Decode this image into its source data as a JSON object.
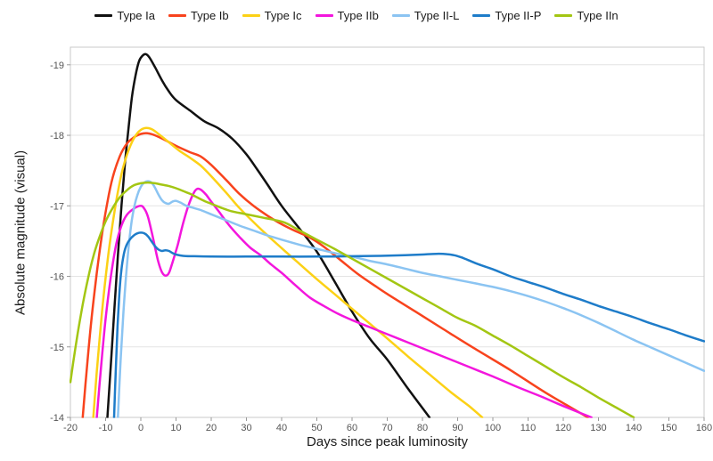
{
  "chart_data": {
    "type": "line",
    "title": "",
    "xlabel": "Days since peak luminosity",
    "ylabel": "Absolute magnitude (visual)",
    "xlim": [
      -20,
      160
    ],
    "ylim": [
      -14,
      -19.25
    ],
    "xticks": [
      -20,
      -10,
      0,
      10,
      20,
      30,
      40,
      50,
      60,
      70,
      80,
      90,
      100,
      110,
      120,
      130,
      140,
      150,
      160
    ],
    "yticks": [
      -19,
      -18,
      -17,
      -16,
      -15,
      -14
    ],
    "grid": "horizontal",
    "legend_position": "top",
    "axis_colors": {
      "border": "#c9c9c9",
      "gridline": "#e4e4e4",
      "tick": "#999999",
      "tick_label": "#555555"
    },
    "series": [
      {
        "name": "Type Ia",
        "color": "#111111",
        "points": [
          [
            -9.5,
            -14
          ],
          [
            -8.5,
            -14.75
          ],
          [
            -7.5,
            -15.55
          ],
          [
            -6.5,
            -16.3
          ],
          [
            -5.5,
            -17.0
          ],
          [
            -4.5,
            -17.6
          ],
          [
            -3.5,
            -18.1
          ],
          [
            -2.5,
            -18.55
          ],
          [
            -1.5,
            -18.85
          ],
          [
            -0.5,
            -19.05
          ],
          [
            0.5,
            -19.13
          ],
          [
            1.5,
            -19.15
          ],
          [
            2.5,
            -19.1
          ],
          [
            4,
            -18.97
          ],
          [
            6,
            -18.78
          ],
          [
            8,
            -18.62
          ],
          [
            10,
            -18.5
          ],
          [
            14,
            -18.35
          ],
          [
            18,
            -18.2
          ],
          [
            22,
            -18.1
          ],
          [
            26,
            -17.95
          ],
          [
            30,
            -17.73
          ],
          [
            33,
            -17.52
          ],
          [
            36,
            -17.3
          ],
          [
            40,
            -17.0
          ],
          [
            45,
            -16.68
          ],
          [
            50,
            -16.35
          ],
          [
            55,
            -15.93
          ],
          [
            60,
            -15.5
          ],
          [
            65,
            -15.12
          ],
          [
            70,
            -14.82
          ],
          [
            76,
            -14.4
          ],
          [
            82,
            -14.0
          ]
        ]
      },
      {
        "name": "Type Ib",
        "color": "#f8431d",
        "points": [
          [
            -16.5,
            -14
          ],
          [
            -15.5,
            -14.6
          ],
          [
            -14,
            -15.4
          ],
          [
            -12.5,
            -16.05
          ],
          [
            -11,
            -16.6
          ],
          [
            -9.5,
            -17.05
          ],
          [
            -8,
            -17.4
          ],
          [
            -6,
            -17.7
          ],
          [
            -4,
            -17.88
          ],
          [
            -2,
            -17.97
          ],
          [
            0,
            -18.02
          ],
          [
            2,
            -18.03
          ],
          [
            4,
            -18.0
          ],
          [
            7,
            -17.93
          ],
          [
            10,
            -17.85
          ],
          [
            14,
            -17.76
          ],
          [
            17,
            -17.7
          ],
          [
            20,
            -17.58
          ],
          [
            24,
            -17.38
          ],
          [
            28,
            -17.17
          ],
          [
            32,
            -17.0
          ],
          [
            36,
            -16.86
          ],
          [
            40,
            -16.74
          ],
          [
            44,
            -16.64
          ],
          [
            48,
            -16.55
          ],
          [
            52,
            -16.42
          ],
          [
            57,
            -16.22
          ],
          [
            62,
            -16.02
          ],
          [
            67,
            -15.85
          ],
          [
            70,
            -15.75
          ],
          [
            78,
            -15.5
          ],
          [
            86,
            -15.25
          ],
          [
            95,
            -14.97
          ],
          [
            105,
            -14.67
          ],
          [
            115,
            -14.35
          ],
          [
            127,
            -14.0
          ]
        ]
      },
      {
        "name": "Type Ic",
        "color": "#fcd116",
        "points": [
          [
            -13.5,
            -14
          ],
          [
            -12.5,
            -14.65
          ],
          [
            -11,
            -15.5
          ],
          [
            -9.5,
            -16.2
          ],
          [
            -8,
            -16.75
          ],
          [
            -6.5,
            -17.2
          ],
          [
            -5,
            -17.55
          ],
          [
            -3,
            -17.85
          ],
          [
            -1,
            -18.03
          ],
          [
            1,
            -18.1
          ],
          [
            3,
            -18.09
          ],
          [
            5,
            -18.02
          ],
          [
            8,
            -17.9
          ],
          [
            11,
            -17.78
          ],
          [
            14,
            -17.68
          ],
          [
            17,
            -17.57
          ],
          [
            20,
            -17.42
          ],
          [
            24,
            -17.2
          ],
          [
            28,
            -16.97
          ],
          [
            32,
            -16.77
          ],
          [
            36,
            -16.58
          ],
          [
            40,
            -16.4
          ],
          [
            45,
            -16.18
          ],
          [
            50,
            -15.96
          ],
          [
            55,
            -15.75
          ],
          [
            60,
            -15.54
          ],
          [
            65,
            -15.33
          ],
          [
            70,
            -15.12
          ],
          [
            76,
            -14.86
          ],
          [
            82,
            -14.61
          ],
          [
            88,
            -14.36
          ],
          [
            93,
            -14.17
          ],
          [
            97,
            -14.0
          ]
        ]
      },
      {
        "name": "Type IIb",
        "color": "#f316dd",
        "points": [
          [
            -12.5,
            -14
          ],
          [
            -11.5,
            -14.6
          ],
          [
            -10,
            -15.4
          ],
          [
            -8.5,
            -16.0
          ],
          [
            -7,
            -16.45
          ],
          [
            -5.5,
            -16.72
          ],
          [
            -4,
            -16.87
          ],
          [
            -2,
            -16.96
          ],
          [
            0,
            -17.0
          ],
          [
            1,
            -16.96
          ],
          [
            2,
            -16.85
          ],
          [
            3,
            -16.65
          ],
          [
            4,
            -16.42
          ],
          [
            5,
            -16.2
          ],
          [
            6,
            -16.06
          ],
          [
            7,
            -16.01
          ],
          [
            8,
            -16.05
          ],
          [
            9,
            -16.2
          ],
          [
            10.5,
            -16.45
          ],
          [
            12,
            -16.75
          ],
          [
            13.5,
            -17.0
          ],
          [
            15,
            -17.18
          ],
          [
            16,
            -17.24
          ],
          [
            17,
            -17.23
          ],
          [
            18.5,
            -17.16
          ],
          [
            20,
            -17.06
          ],
          [
            22,
            -16.93
          ],
          [
            25,
            -16.73
          ],
          [
            28,
            -16.56
          ],
          [
            31,
            -16.41
          ],
          [
            34,
            -16.3
          ],
          [
            37,
            -16.17
          ],
          [
            40,
            -16.05
          ],
          [
            44,
            -15.87
          ],
          [
            48,
            -15.7
          ],
          [
            52,
            -15.58
          ],
          [
            56,
            -15.47
          ],
          [
            60,
            -15.38
          ],
          [
            65,
            -15.28
          ],
          [
            70,
            -15.18
          ],
          [
            76,
            -15.06
          ],
          [
            82,
            -14.94
          ],
          [
            88,
            -14.82
          ],
          [
            94,
            -14.7
          ],
          [
            100,
            -14.58
          ],
          [
            107,
            -14.43
          ],
          [
            114,
            -14.29
          ],
          [
            121,
            -14.14
          ],
          [
            128,
            -14.0
          ]
        ]
      },
      {
        "name": "Type II-L",
        "color": "#8bc4f2",
        "points": [
          [
            -6.5,
            -14
          ],
          [
            -5.8,
            -14.75
          ],
          [
            -5,
            -15.45
          ],
          [
            -4.2,
            -16.0
          ],
          [
            -3.4,
            -16.45
          ],
          [
            -2.6,
            -16.78
          ],
          [
            -1.8,
            -17.0
          ],
          [
            -1,
            -17.15
          ],
          [
            0,
            -17.27
          ],
          [
            1,
            -17.33
          ],
          [
            2,
            -17.35
          ],
          [
            3,
            -17.33
          ],
          [
            4,
            -17.26
          ],
          [
            5,
            -17.16
          ],
          [
            6,
            -17.08
          ],
          [
            7,
            -17.04
          ],
          [
            8,
            -17.03
          ],
          [
            9,
            -17.06
          ],
          [
            10,
            -17.07
          ],
          [
            11.5,
            -17.04
          ],
          [
            13,
            -17.0
          ],
          [
            15,
            -16.97
          ],
          [
            17,
            -16.94
          ],
          [
            20,
            -16.88
          ],
          [
            24,
            -16.8
          ],
          [
            28,
            -16.72
          ],
          [
            32,
            -16.65
          ],
          [
            36,
            -16.58
          ],
          [
            40,
            -16.52
          ],
          [
            45,
            -16.45
          ],
          [
            50,
            -16.39
          ],
          [
            55,
            -16.33
          ],
          [
            60,
            -16.28
          ],
          [
            65,
            -16.22
          ],
          [
            70,
            -16.17
          ],
          [
            75,
            -16.11
          ],
          [
            80,
            -16.05
          ],
          [
            85,
            -16.0
          ],
          [
            90,
            -15.95
          ],
          [
            95,
            -15.9
          ],
          [
            100,
            -15.85
          ],
          [
            105,
            -15.79
          ],
          [
            110,
            -15.72
          ],
          [
            115,
            -15.64
          ],
          [
            120,
            -15.55
          ],
          [
            125,
            -15.45
          ],
          [
            130,
            -15.34
          ],
          [
            135,
            -15.22
          ],
          [
            140,
            -15.1
          ],
          [
            145,
            -14.99
          ],
          [
            150,
            -14.88
          ],
          [
            155,
            -14.77
          ],
          [
            160,
            -14.66
          ]
        ]
      },
      {
        "name": "Type II-P",
        "color": "#1e7cc9",
        "points": [
          [
            -7.6,
            -14
          ],
          [
            -7.1,
            -14.7
          ],
          [
            -6.6,
            -15.3
          ],
          [
            -6.1,
            -15.75
          ],
          [
            -5.5,
            -16.1
          ],
          [
            -4.8,
            -16.32
          ],
          [
            -4,
            -16.45
          ],
          [
            -3,
            -16.53
          ],
          [
            -2,
            -16.58
          ],
          [
            -1,
            -16.61
          ],
          [
            0,
            -16.62
          ],
          [
            1,
            -16.61
          ],
          [
            2,
            -16.57
          ],
          [
            3,
            -16.5
          ],
          [
            4,
            -16.43
          ],
          [
            5,
            -16.38
          ],
          [
            6,
            -16.36
          ],
          [
            7,
            -16.37
          ],
          [
            8,
            -16.36
          ],
          [
            9,
            -16.33
          ],
          [
            10,
            -16.31
          ],
          [
            12,
            -16.29
          ],
          [
            15,
            -16.285
          ],
          [
            20,
            -16.28
          ],
          [
            30,
            -16.28
          ],
          [
            40,
            -16.28
          ],
          [
            50,
            -16.28
          ],
          [
            60,
            -16.285
          ],
          [
            68,
            -16.29
          ],
          [
            75,
            -16.3
          ],
          [
            80,
            -16.31
          ],
          [
            84,
            -16.32
          ],
          [
            87,
            -16.315
          ],
          [
            89,
            -16.3
          ],
          [
            91,
            -16.27
          ],
          [
            93,
            -16.23
          ],
          [
            96,
            -16.17
          ],
          [
            100,
            -16.1
          ],
          [
            105,
            -16.0
          ],
          [
            110,
            -15.92
          ],
          [
            115,
            -15.84
          ],
          [
            120,
            -15.75
          ],
          [
            125,
            -15.67
          ],
          [
            130,
            -15.58
          ],
          [
            135,
            -15.5
          ],
          [
            140,
            -15.42
          ],
          [
            145,
            -15.33
          ],
          [
            150,
            -15.25
          ],
          [
            155,
            -15.16
          ],
          [
            160,
            -15.08
          ]
        ]
      },
      {
        "name": "Type IIn",
        "color": "#a3c613",
        "points": [
          [
            -20,
            -14.5
          ],
          [
            -19,
            -14.85
          ],
          [
            -18,
            -15.17
          ],
          [
            -16.5,
            -15.6
          ],
          [
            -15,
            -15.97
          ],
          [
            -13.5,
            -16.28
          ],
          [
            -12,
            -16.52
          ],
          [
            -10,
            -16.78
          ],
          [
            -8,
            -16.97
          ],
          [
            -6,
            -17.12
          ],
          [
            -4,
            -17.22
          ],
          [
            -2,
            -17.29
          ],
          [
            0,
            -17.32
          ],
          [
            2,
            -17.33
          ],
          [
            4,
            -17.32
          ],
          [
            6,
            -17.3
          ],
          [
            8,
            -17.28
          ],
          [
            10,
            -17.25
          ],
          [
            12,
            -17.21
          ],
          [
            14,
            -17.17
          ],
          [
            16,
            -17.12
          ],
          [
            18,
            -17.07
          ],
          [
            20,
            -17.03
          ],
          [
            23,
            -16.97
          ],
          [
            26,
            -16.92
          ],
          [
            29,
            -16.89
          ],
          [
            32,
            -16.86
          ],
          [
            35,
            -16.83
          ],
          [
            38,
            -16.8
          ],
          [
            41,
            -16.76
          ],
          [
            44,
            -16.68
          ],
          [
            47,
            -16.6
          ],
          [
            50,
            -16.52
          ],
          [
            55,
            -16.39
          ],
          [
            60,
            -16.25
          ],
          [
            65,
            -16.11
          ],
          [
            70,
            -15.97
          ],
          [
            75,
            -15.83
          ],
          [
            80,
            -15.69
          ],
          [
            85,
            -15.55
          ],
          [
            90,
            -15.41
          ],
          [
            95,
            -15.3
          ],
          [
            100,
            -15.16
          ],
          [
            105,
            -15.02
          ],
          [
            110,
            -14.87
          ],
          [
            115,
            -14.72
          ],
          [
            120,
            -14.57
          ],
          [
            125,
            -14.43
          ],
          [
            130,
            -14.28
          ],
          [
            135,
            -14.14
          ],
          [
            140,
            -14.0
          ]
        ]
      }
    ]
  }
}
